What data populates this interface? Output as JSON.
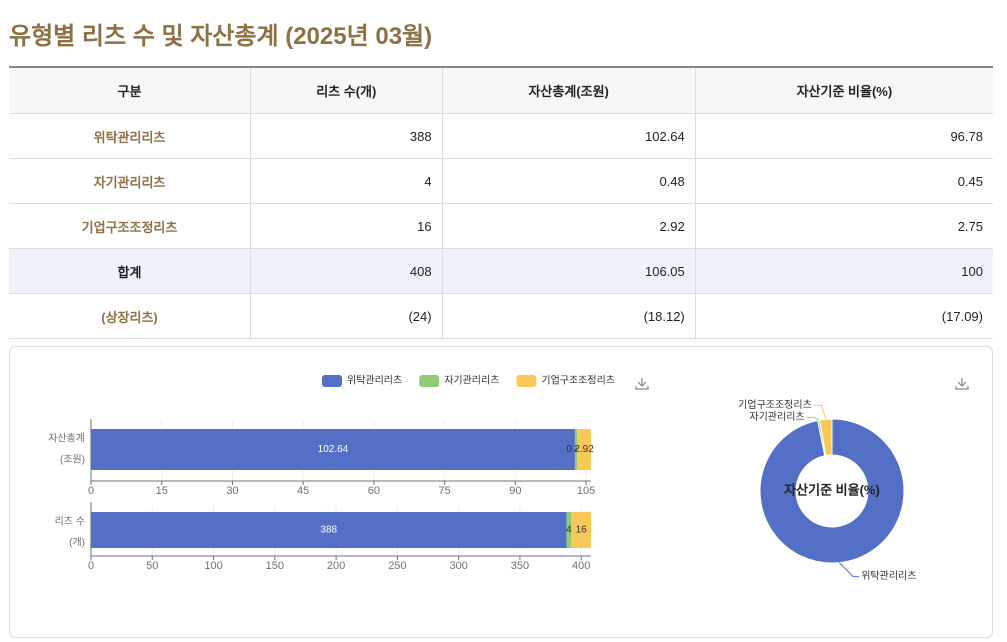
{
  "title": "유형별 리츠 수 및 자산총계 (2025년 03월)",
  "table": {
    "header": [
      "구분",
      "리츠 수(개)",
      "자산총계(조원)",
      "자산기준 비율(%)"
    ],
    "rows": [
      [
        "위탁관리리츠",
        "388",
        "102.64",
        "96.78"
      ],
      [
        "자기관리리츠",
        "4",
        "0.48",
        "0.45"
      ],
      [
        "기업구조조정리츠",
        "16",
        "2.92",
        "2.75"
      ],
      [
        "합계",
        "408",
        "106.05",
        "100"
      ],
      [
        "(상장리츠)",
        "(24)",
        "(18.12)",
        "(17.09)"
      ]
    ]
  },
  "chart_data": [
    {
      "type": "stacked-hbar",
      "categories": [
        [
          "자산총계",
          "(조원)"
        ],
        [
          "리츠 수",
          "(개)"
        ]
      ],
      "series": [
        {
          "name": "위탁관리리츠",
          "color": "#5470c6",
          "values": [
            102.64,
            388
          ]
        },
        {
          "name": "자기관리리츠",
          "color": "#91cc75",
          "values": [
            0.48,
            4
          ]
        },
        {
          "name": "기업구조조정리츠",
          "color": "#fac858",
          "values": [
            2.92,
            16
          ]
        }
      ],
      "axes": [
        {
          "xlim": [
            0,
            106.05
          ],
          "xticks": [
            0,
            15,
            30,
            45,
            60,
            75,
            90,
            105
          ]
        },
        {
          "xlim": [
            0,
            408
          ],
          "xticks": [
            0,
            50,
            100,
            150,
            200,
            250,
            300,
            350,
            400
          ]
        }
      ],
      "legend": "top",
      "grid": true
    },
    {
      "type": "donut",
      "title": "자산기준 비율(%)",
      "labels": [
        "위탁관리리츠",
        "자기관리리츠",
        "기업구조조정리츠"
      ],
      "values": [
        96.78,
        0.45,
        2.75
      ],
      "colors": [
        "#5470c6",
        "#91cc75",
        "#fac858"
      ]
    }
  ]
}
